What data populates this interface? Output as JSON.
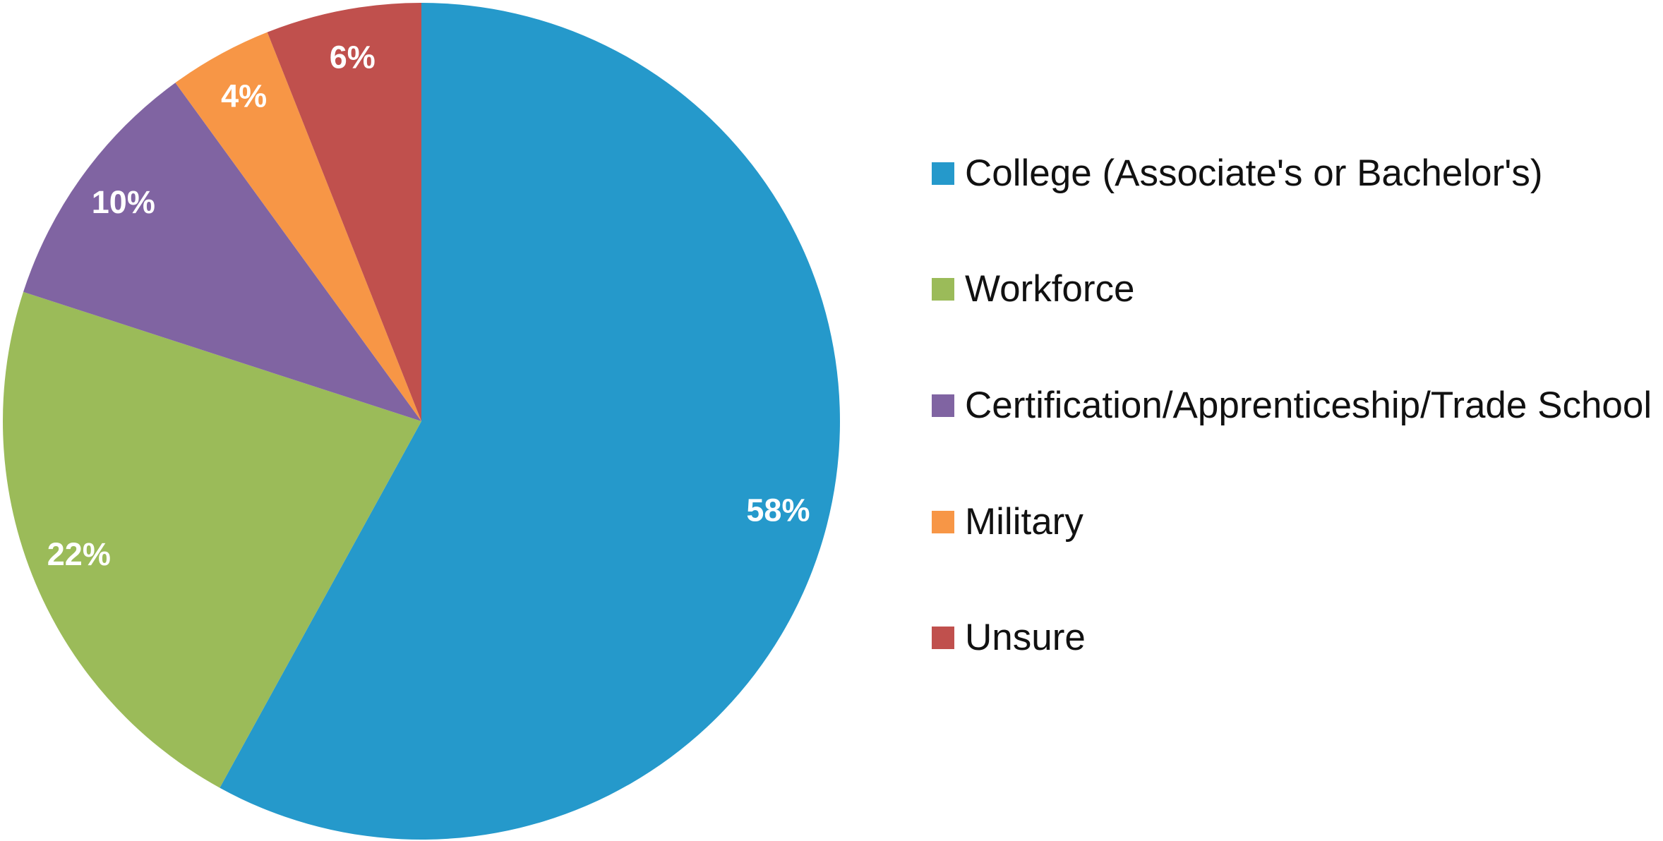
{
  "chart_data": {
    "type": "pie",
    "categories": [
      "College (Associate's or Bachelor's)",
      "Workforce",
      "Certification/Apprenticeship/Trade School",
      "Military",
      "Unsure"
    ],
    "values": [
      58,
      22,
      10,
      4,
      6
    ],
    "value_labels": [
      "58%",
      "22%",
      "10%",
      "4%",
      "6%"
    ],
    "colors": [
      "#2599cb",
      "#9bbb59",
      "#8064a2",
      "#f79646",
      "#c0504d"
    ],
    "legend": "right"
  }
}
